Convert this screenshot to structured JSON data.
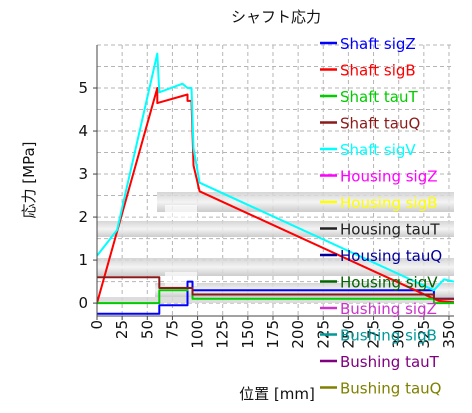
{
  "chart_data": {
    "type": "line",
    "title": "シャフト応力",
    "xlabel": "位置 [mm]",
    "ylabel": "応力 [MPa]",
    "xlim": [
      0,
      355
    ],
    "ylim": [
      -0.3,
      6.0
    ],
    "xticks": [
      0,
      25,
      50,
      75,
      100,
      125,
      150,
      175,
      200,
      225,
      250,
      275,
      300,
      325,
      350
    ],
    "yticks": [
      0,
      1,
      2,
      3,
      4,
      5
    ],
    "grid": true,
    "legend_position": "right",
    "series": [
      {
        "name": "Shaft sigZ",
        "color": "#0000ff",
        "points": [
          [
            0,
            -0.25
          ],
          [
            62,
            -0.25
          ],
          [
            62,
            -0.05
          ],
          [
            90,
            -0.05
          ],
          [
            90,
            0.5
          ],
          [
            95,
            0.5
          ],
          [
            95,
            0.3
          ],
          [
            335,
            0.3
          ],
          [
            335,
            0.1
          ],
          [
            355,
            0.1
          ]
        ]
      },
      {
        "name": "Shaft sigB",
        "color": "#ff0000",
        "points": [
          [
            0,
            0
          ],
          [
            60,
            5.0
          ],
          [
            60,
            4.65
          ],
          [
            90,
            4.85
          ],
          [
            90,
            4.7
          ],
          [
            94,
            4.7
          ],
          [
            96,
            3.2
          ],
          [
            102,
            2.6
          ],
          [
            335,
            0.1
          ],
          [
            340,
            0.05
          ],
          [
            355,
            0.02
          ]
        ]
      },
      {
        "name": "Shaft tauT",
        "color": "#00cc00",
        "points": [
          [
            0,
            0
          ],
          [
            62,
            0
          ],
          [
            62,
            0.3
          ],
          [
            90,
            0.3
          ],
          [
            90,
            0.35
          ],
          [
            95,
            0.35
          ],
          [
            95,
            0.1
          ],
          [
            335,
            0.1
          ],
          [
            335,
            0
          ],
          [
            355,
            0
          ]
        ]
      },
      {
        "name": "Shaft tauQ",
        "color": "#8b1a1a",
        "points": [
          [
            0,
            0.6
          ],
          [
            62,
            0.6
          ],
          [
            62,
            0.35
          ],
          [
            95,
            0.35
          ],
          [
            95,
            0.2
          ],
          [
            335,
            0.2
          ],
          [
            335,
            0.1
          ],
          [
            355,
            0.1
          ]
        ]
      },
      {
        "name": "Shaft sigV",
        "color": "#00ffff",
        "points": [
          [
            0,
            1.1
          ],
          [
            20,
            1.7
          ],
          [
            60,
            5.8
          ],
          [
            62,
            4.9
          ],
          [
            85,
            5.1
          ],
          [
            90,
            5.0
          ],
          [
            94,
            5.0
          ],
          [
            96,
            3.6
          ],
          [
            102,
            2.8
          ],
          [
            335,
            0.3
          ],
          [
            345,
            0.55
          ],
          [
            355,
            0.5
          ]
        ]
      },
      {
        "name": "Housing sigZ",
        "color": "#ff00ff",
        "points": []
      },
      {
        "name": "Housing sigB",
        "color": "#ffff00",
        "points": []
      },
      {
        "name": "Housing tauT",
        "color": "#222222",
        "points": []
      },
      {
        "name": "Housing tauQ",
        "color": "#000099",
        "points": []
      },
      {
        "name": "Housing sigV",
        "color": "#006400",
        "points": []
      },
      {
        "name": "Bushing sigZ",
        "color": "#cc33cc",
        "points": []
      },
      {
        "name": "Bushing sigB",
        "color": "#009999",
        "points": []
      },
      {
        "name": "Bushing tauT",
        "color": "#800080",
        "points": []
      },
      {
        "name": "Bushing tauQ",
        "color": "#808000",
        "points": []
      }
    ]
  }
}
